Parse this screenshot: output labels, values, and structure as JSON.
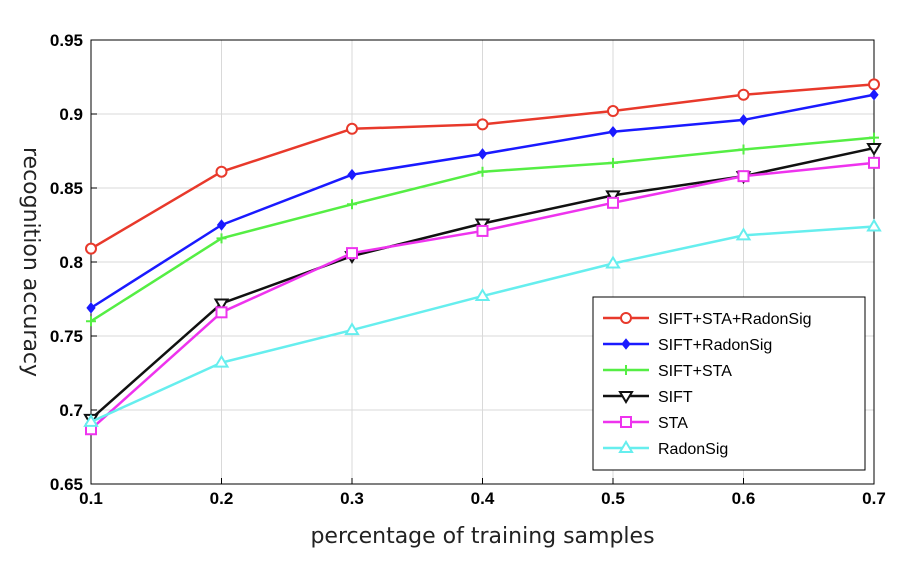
{
  "chart_data": {
    "type": "line",
    "title": "",
    "xlabel": "percentage of training samples",
    "ylabel": "recognition accuracy",
    "x": [
      0.1,
      0.2,
      0.3,
      0.4,
      0.5,
      0.6,
      0.7
    ],
    "xlim": [
      0.1,
      0.7
    ],
    "ylim": [
      0.65,
      0.95
    ],
    "xticks": [
      "0.1",
      "0.2",
      "0.3",
      "0.4",
      "0.5",
      "0.6",
      "0.7"
    ],
    "yticks": [
      "0.65",
      "0.7",
      "0.75",
      "0.8",
      "0.85",
      "0.9",
      "0.95"
    ],
    "grid": true,
    "legend_position": "bottom-right",
    "series": [
      {
        "name": "SIFT+STA+RadonSig",
        "color": "#e8392b",
        "marker": "circle",
        "values": [
          0.809,
          0.861,
          0.89,
          0.893,
          0.902,
          0.913,
          0.92
        ]
      },
      {
        "name": "SIFT+RadonSig",
        "color": "#1a1aff",
        "marker": "diamond",
        "values": [
          0.769,
          0.825,
          0.859,
          0.873,
          0.888,
          0.896,
          0.913
        ]
      },
      {
        "name": "SIFT+STA",
        "color": "#55ee44",
        "marker": "plus",
        "values": [
          0.76,
          0.816,
          0.839,
          0.861,
          0.867,
          0.876,
          0.884
        ]
      },
      {
        "name": "SIFT",
        "color": "#111111",
        "marker": "triangle-down",
        "values": [
          0.694,
          0.772,
          0.804,
          0.826,
          0.845,
          0.858,
          0.877
        ]
      },
      {
        "name": "STA",
        "color": "#ee33ee",
        "marker": "square",
        "values": [
          0.687,
          0.766,
          0.806,
          0.821,
          0.84,
          0.858,
          0.867
        ]
      },
      {
        "name": "RadonSig",
        "color": "#66eeee",
        "marker": "triangle-up",
        "values": [
          0.692,
          0.732,
          0.754,
          0.777,
          0.799,
          0.818,
          0.824
        ]
      }
    ]
  }
}
